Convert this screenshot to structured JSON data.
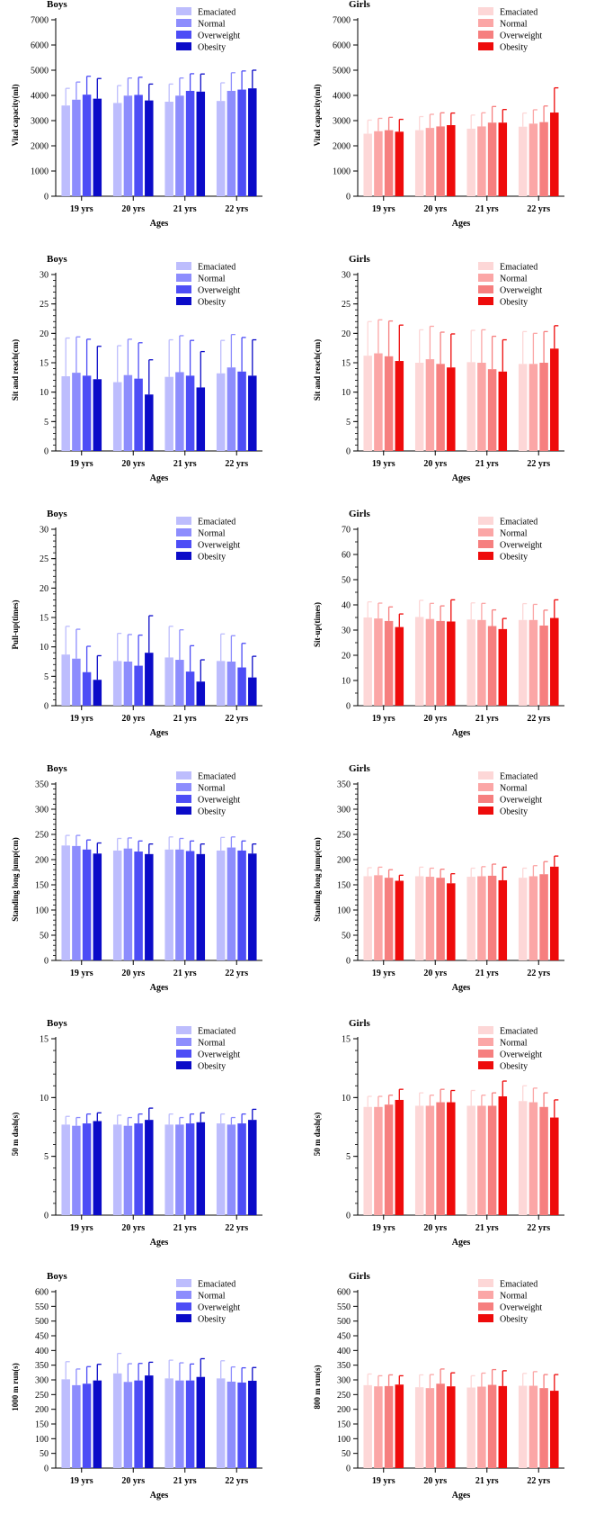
{
  "chart_data": [
    {
      "type": "bar",
      "panel_label": "Boys",
      "palette": "boys",
      "categories": [
        "19 yrs",
        "20 yrs",
        "21 yrs",
        "22 yrs"
      ],
      "xlabel": "Ages",
      "ylabel": "Vital capacity(ml)",
      "ylim": [
        0,
        7000
      ],
      "yticks": [
        0,
        1000,
        2000,
        3000,
        4000,
        5000,
        6000,
        7000
      ],
      "minor_per_major": 1,
      "series": [
        {
          "name": "Emaciated",
          "values": [
            3600,
            3700,
            3750,
            3780
          ],
          "errors": [
            680,
            690,
            700,
            720
          ]
        },
        {
          "name": "Normal",
          "values": [
            3830,
            3990,
            3990,
            4180
          ],
          "errors": [
            700,
            700,
            700,
            720
          ]
        },
        {
          "name": "Overweight",
          "values": [
            4030,
            4020,
            4180,
            4230
          ],
          "errors": [
            730,
            700,
            680,
            740
          ]
        },
        {
          "name": "Obesity",
          "values": [
            3870,
            3800,
            4150,
            4280
          ],
          "errors": [
            800,
            650,
            700,
            720
          ]
        }
      ]
    },
    {
      "type": "bar",
      "panel_label": "Girls",
      "palette": "girls",
      "categories": [
        "19 yrs",
        "20 yrs",
        "21 yrs",
        "22 yrs"
      ],
      "xlabel": "Ages",
      "ylabel": "Vital capacity(ml)",
      "ylim": [
        0,
        7000
      ],
      "yticks": [
        0,
        1000,
        2000,
        3000,
        4000,
        5000,
        6000,
        7000
      ],
      "minor_per_major": 1,
      "series": [
        {
          "name": "Emaciated",
          "values": [
            2480,
            2620,
            2680,
            2760
          ],
          "errors": [
            540,
            540,
            540,
            540
          ]
        },
        {
          "name": "Normal",
          "values": [
            2580,
            2710,
            2770,
            2880
          ],
          "errors": [
            510,
            540,
            540,
            550
          ]
        },
        {
          "name": "Overweight",
          "values": [
            2620,
            2770,
            2920,
            2940
          ],
          "errors": [
            510,
            540,
            640,
            640
          ]
        },
        {
          "name": "Obesity",
          "values": [
            2560,
            2820,
            2920,
            3320
          ],
          "errors": [
            490,
            480,
            520,
            980
          ]
        }
      ]
    },
    {
      "type": "bar",
      "panel_label": "Boys",
      "palette": "boys",
      "categories": [
        "19 yrs",
        "20 yrs",
        "21 yrs",
        "22 yrs"
      ],
      "xlabel": "Ages",
      "ylabel": "Sit and reach(cm)",
      "ylim": [
        0,
        30
      ],
      "yticks": [
        0,
        5,
        10,
        15,
        20,
        25,
        30
      ],
      "minor_per_major": 5,
      "series": [
        {
          "name": "Emaciated",
          "values": [
            12.7,
            11.7,
            12.6,
            13.2
          ],
          "errors": [
            6.5,
            6.2,
            6.3,
            5.6
          ]
        },
        {
          "name": "Normal",
          "values": [
            13.3,
            12.9,
            13.4,
            14.2
          ],
          "errors": [
            6.1,
            6.1,
            6.2,
            5.6
          ]
        },
        {
          "name": "Overweight",
          "values": [
            12.8,
            12.3,
            12.8,
            13.5
          ],
          "errors": [
            6.2,
            6.1,
            6.0,
            5.8
          ]
        },
        {
          "name": "Obesity",
          "values": [
            12.2,
            9.6,
            10.8,
            12.8
          ],
          "errors": [
            5.6,
            5.9,
            6.1,
            6.1
          ]
        }
      ]
    },
    {
      "type": "bar",
      "panel_label": "Girls",
      "palette": "girls",
      "categories": [
        "19 yrs",
        "20 yrs",
        "21 yrs",
        "22 yrs"
      ],
      "xlabel": "Ages",
      "ylabel": "Sit and reach(cm)",
      "ylim": [
        0,
        30
      ],
      "yticks": [
        0,
        5,
        10,
        15,
        20,
        25,
        30
      ],
      "minor_per_major": 5,
      "series": [
        {
          "name": "Emaciated",
          "values": [
            16.2,
            15.0,
            15.1,
            14.8
          ],
          "errors": [
            5.8,
            5.6,
            5.4,
            5.5
          ]
        },
        {
          "name": "Normal",
          "values": [
            16.6,
            15.6,
            15.0,
            14.8
          ],
          "errors": [
            5.7,
            5.6,
            5.6,
            5.2
          ]
        },
        {
          "name": "Overweight",
          "values": [
            16.1,
            14.8,
            13.9,
            15.0
          ],
          "errors": [
            6.0,
            5.4,
            5.6,
            5.3
          ]
        },
        {
          "name": "Obesity",
          "values": [
            15.3,
            14.2,
            13.5,
            17.4
          ],
          "errors": [
            6.1,
            5.7,
            5.4,
            3.9
          ]
        }
      ]
    },
    {
      "type": "bar",
      "panel_label": "Boys",
      "palette": "boys",
      "categories": [
        "19 yrs",
        "20 yrs",
        "21 yrs",
        "22 yrs"
      ],
      "xlabel": "Ages",
      "ylabel": "Pull-up(times)",
      "ylim": [
        0,
        30
      ],
      "yticks": [
        0,
        5,
        10,
        15,
        20,
        25,
        30
      ],
      "minor_per_major": 5,
      "series": [
        {
          "name": "Emaciated",
          "values": [
            8.7,
            7.6,
            8.2,
            7.6
          ],
          "errors": [
            4.8,
            4.7,
            5.3,
            4.6
          ]
        },
        {
          "name": "Normal",
          "values": [
            8.0,
            7.5,
            7.8,
            7.5
          ],
          "errors": [
            5.0,
            4.6,
            5.1,
            4.4
          ]
        },
        {
          "name": "Overweight",
          "values": [
            5.7,
            6.8,
            5.8,
            6.5
          ],
          "errors": [
            4.4,
            5.2,
            4.4,
            4.1
          ]
        },
        {
          "name": "Obesity",
          "values": [
            4.4,
            9.0,
            4.1,
            4.8
          ],
          "errors": [
            4.1,
            6.3,
            3.7,
            3.6
          ]
        }
      ]
    },
    {
      "type": "bar",
      "panel_label": "Girls",
      "palette": "girls",
      "categories": [
        "19 yrs",
        "20 yrs",
        "21 yrs",
        "22 yrs"
      ],
      "xlabel": "Ages",
      "ylabel": "Sit-up(times)",
      "ylim": [
        0,
        70
      ],
      "yticks": [
        0,
        10,
        20,
        30,
        40,
        50,
        60,
        70
      ],
      "minor_per_major": 2,
      "series": [
        {
          "name": "Emaciated",
          "values": [
            35.0,
            35.2,
            34.2,
            34.0
          ],
          "errors": [
            6.2,
            6.6,
            6.6,
            6.5
          ]
        },
        {
          "name": "Normal",
          "values": [
            34.6,
            34.4,
            34.0,
            34.0
          ],
          "errors": [
            6.1,
            6.2,
            6.6,
            6.2
          ]
        },
        {
          "name": "Overweight",
          "values": [
            33.6,
            33.6,
            31.6,
            31.8
          ],
          "errors": [
            5.6,
            6.0,
            6.4,
            6.1
          ]
        },
        {
          "name": "Obesity",
          "values": [
            31.2,
            33.4,
            30.4,
            34.8
          ],
          "errors": [
            5.2,
            8.6,
            4.2,
            7.2
          ]
        }
      ]
    },
    {
      "type": "bar",
      "panel_label": "Boys",
      "palette": "boys",
      "categories": [
        "19 yrs",
        "20 yrs",
        "21 yrs",
        "22 yrs"
      ],
      "xlabel": "Ages",
      "ylabel": "Standing long jump(cm)",
      "ylim": [
        0,
        350
      ],
      "yticks": [
        0,
        50,
        100,
        150,
        200,
        250,
        300,
        350
      ],
      "minor_per_major": 5,
      "series": [
        {
          "name": "Emaciated",
          "values": [
            228,
            218,
            220,
            218
          ],
          "errors": [
            20,
            24,
            25,
            26
          ]
        },
        {
          "name": "Normal",
          "values": [
            227,
            222,
            220,
            224
          ],
          "errors": [
            21,
            21,
            22,
            21
          ]
        },
        {
          "name": "Overweight",
          "values": [
            220,
            216,
            217,
            218
          ],
          "errors": [
            19,
            21,
            20,
            19
          ]
        },
        {
          "name": "Obesity",
          "values": [
            212,
            211,
            211,
            212
          ],
          "errors": [
            21,
            20,
            20,
            19
          ]
        }
      ]
    },
    {
      "type": "bar",
      "panel_label": "Girls",
      "palette": "girls",
      "categories": [
        "19 yrs",
        "20 yrs",
        "21 yrs",
        "22 yrs"
      ],
      "xlabel": "Ages",
      "ylabel": "Standing long jump(cm)",
      "ylim": [
        0,
        350
      ],
      "yticks": [
        0,
        50,
        100,
        150,
        200,
        250,
        300,
        350
      ],
      "minor_per_major": 5,
      "series": [
        {
          "name": "Emaciated",
          "values": [
            167,
            167,
            166,
            164
          ],
          "errors": [
            17,
            18,
            17,
            19
          ]
        },
        {
          "name": "Normal",
          "values": [
            169,
            166,
            167,
            167
          ],
          "errors": [
            16,
            17,
            19,
            21
          ]
        },
        {
          "name": "Overweight",
          "values": [
            164,
            164,
            168,
            171
          ],
          "errors": [
            16,
            17,
            23,
            25
          ]
        },
        {
          "name": "Obesity",
          "values": [
            158,
            153,
            159,
            186
          ],
          "errors": [
            11,
            19,
            26,
            21
          ]
        }
      ]
    },
    {
      "type": "bar",
      "panel_label": "Boys",
      "palette": "boys",
      "categories": [
        "19 yrs",
        "20 yrs",
        "21 yrs",
        "22 yrs"
      ],
      "xlabel": "Ages",
      "ylabel": "50 m dash(s)",
      "ylim": [
        0,
        15
      ],
      "yticks": [
        0,
        5,
        10,
        15
      ],
      "minor_per_major": 5,
      "series": [
        {
          "name": "Emaciated",
          "values": [
            7.7,
            7.7,
            7.7,
            7.8
          ],
          "errors": [
            0.7,
            0.8,
            0.9,
            0.8
          ]
        },
        {
          "name": "Normal",
          "values": [
            7.6,
            7.6,
            7.7,
            7.7
          ],
          "errors": [
            0.7,
            0.7,
            0.6,
            0.6
          ]
        },
        {
          "name": "Overweight",
          "values": [
            7.8,
            7.8,
            7.8,
            7.8
          ],
          "errors": [
            0.8,
            0.8,
            0.8,
            0.8
          ]
        },
        {
          "name": "Obesity",
          "values": [
            8.0,
            8.1,
            7.9,
            8.1
          ],
          "errors": [
            0.7,
            1.0,
            0.8,
            0.9
          ]
        }
      ]
    },
    {
      "type": "bar",
      "panel_label": "Girls",
      "palette": "girls",
      "categories": [
        "19 yrs",
        "20 yrs",
        "21 yrs",
        "22 yrs"
      ],
      "xlabel": "Ages",
      "ylabel": "50 m dash(s)",
      "ylim": [
        0,
        15
      ],
      "yticks": [
        0,
        5,
        10,
        15
      ],
      "minor_per_major": 5,
      "series": [
        {
          "name": "Emaciated",
          "values": [
            9.2,
            9.3,
            9.3,
            9.7
          ],
          "errors": [
            0.9,
            1.1,
            1.3,
            1.3
          ]
        },
        {
          "name": "Normal",
          "values": [
            9.2,
            9.3,
            9.3,
            9.6
          ],
          "errors": [
            0.9,
            0.9,
            0.9,
            1.2
          ]
        },
        {
          "name": "Overweight",
          "values": [
            9.4,
            9.6,
            9.3,
            9.2
          ],
          "errors": [
            0.8,
            1.1,
            1.1,
            1.2
          ]
        },
        {
          "name": "Obesity",
          "values": [
            9.8,
            9.6,
            10.1,
            8.3
          ],
          "errors": [
            0.9,
            1.0,
            1.3,
            1.5
          ]
        }
      ]
    },
    {
      "type": "bar",
      "panel_label": "Boys",
      "palette": "boys",
      "categories": [
        "19 yrs",
        "20 yrs",
        "21 yrs",
        "22 yrs"
      ],
      "xlabel": "Ages",
      "ylabel": "1000 m run(s)",
      "ylim": [
        0,
        600
      ],
      "yticks": [
        0,
        50,
        100,
        150,
        200,
        250,
        300,
        350,
        400,
        450,
        500,
        550,
        600
      ],
      "minor_per_major": 1,
      "series": [
        {
          "name": "Emaciated",
          "values": [
            302,
            322,
            305,
            305
          ],
          "errors": [
            60,
            68,
            62,
            60
          ]
        },
        {
          "name": "Normal",
          "values": [
            282,
            293,
            298,
            294
          ],
          "errors": [
            55,
            62,
            60,
            50
          ]
        },
        {
          "name": "Overweight",
          "values": [
            287,
            298,
            298,
            291
          ],
          "errors": [
            58,
            58,
            56,
            50
          ]
        },
        {
          "name": "Obesity",
          "values": [
            298,
            315,
            310,
            297
          ],
          "errors": [
            55,
            45,
            62,
            45
          ]
        }
      ]
    },
    {
      "type": "bar",
      "panel_label": "Girls",
      "palette": "girls",
      "categories": [
        "19 yrs",
        "20 yrs",
        "21 yrs",
        "22 yrs"
      ],
      "xlabel": "Ages",
      "ylabel": "800 m run(s)",
      "ylim": [
        0,
        600
      ],
      "yticks": [
        0,
        50,
        100,
        150,
        200,
        250,
        300,
        350,
        400,
        450,
        500,
        550,
        600
      ],
      "minor_per_major": 1,
      "series": [
        {
          "name": "Emaciated",
          "values": [
            282,
            275,
            274,
            280
          ],
          "errors": [
            38,
            42,
            40,
            42
          ]
        },
        {
          "name": "Normal",
          "values": [
            278,
            272,
            277,
            280
          ],
          "errors": [
            36,
            46,
            46,
            48
          ]
        },
        {
          "name": "Overweight",
          "values": [
            279,
            287,
            283,
            272
          ],
          "errors": [
            38,
            50,
            52,
            46
          ]
        },
        {
          "name": "Obesity",
          "values": [
            284,
            278,
            279,
            263
          ],
          "errors": [
            30,
            46,
            52,
            55
          ]
        }
      ]
    }
  ],
  "palettes": {
    "boys": [
      "#bdbdfd",
      "#8d8dfd",
      "#4d4df6",
      "#0b0bc8"
    ],
    "girls": [
      "#fdd7d7",
      "#fba6a6",
      "#f67f7f",
      "#ee0b0b"
    ]
  }
}
